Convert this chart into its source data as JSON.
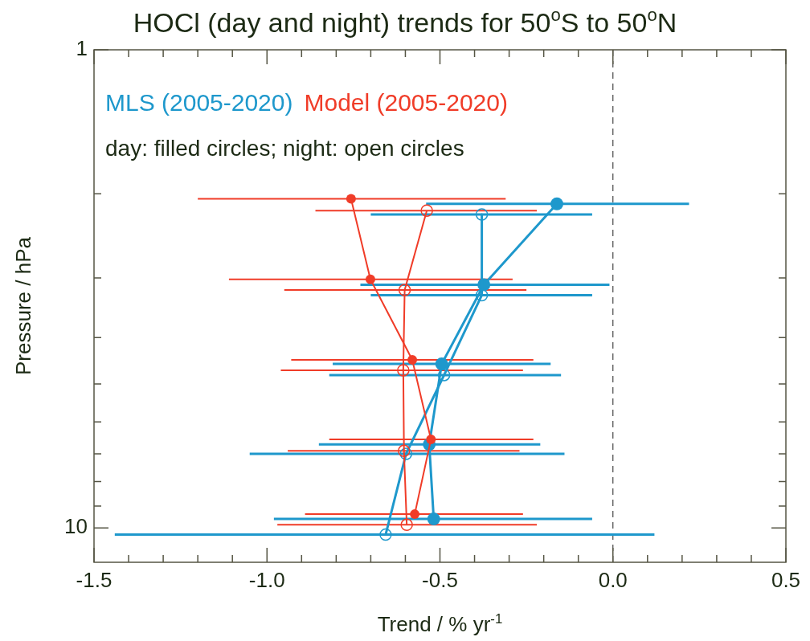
{
  "chart_data": {
    "type": "line",
    "title": "HOCl (day and night) trends for 50$^{o}$S to 50$^{o}$N",
    "xlabel": "Trend / % yr$^{-1}$",
    "ylabel": "Pressure / hPa",
    "annotations": [
      "day: filled circles; night: open circles"
    ],
    "xlim": [
      -1.5,
      0.5
    ],
    "xticks": [
      {
        "value": -1.5,
        "label": "-1.5"
      },
      {
        "value": -1.4,
        "label": null
      },
      {
        "value": -1.3,
        "label": null
      },
      {
        "value": -1.2,
        "label": null
      },
      {
        "value": -1.1,
        "label": null
      },
      {
        "value": -1.0,
        "label": "-1.0"
      },
      {
        "value": -0.9,
        "label": null
      },
      {
        "value": -0.8,
        "label": null
      },
      {
        "value": -0.7,
        "label": null
      },
      {
        "value": -0.6,
        "label": null
      },
      {
        "value": -0.5,
        "label": "-0.5"
      },
      {
        "value": -0.4,
        "label": null
      },
      {
        "value": -0.3,
        "label": null
      },
      {
        "value": -0.2,
        "label": null
      },
      {
        "value": -0.1,
        "label": null
      },
      {
        "value": 0,
        "label": "0.0"
      },
      {
        "value": 0.1,
        "label": null
      },
      {
        "value": 0.2,
        "label": null
      },
      {
        "value": 0.3,
        "label": null
      },
      {
        "value": 0.4,
        "label": null
      },
      {
        "value": 0.5,
        "label": "0.5"
      }
    ],
    "ylim": [
      11.8,
      1
    ],
    "yticks": [
      1,
      {
        "value": 2,
        "label": null
      },
      {
        "value": 3,
        "label": null
      },
      {
        "value": 4,
        "label": null
      },
      {
        "value": 5,
        "label": null
      },
      {
        "value": 6,
        "label": null
      },
      {
        "value": 7,
        "label": null
      },
      {
        "value": 8,
        "label": null
      },
      {
        "value": 9,
        "label": null
      },
      10
    ],
    "log": "y",
    "grid": false,
    "legend": "top left",
    "marker": "circle",
    "ref_lines": [
      {
        "axis": "x",
        "value": 0,
        "label": null,
        "color": "#444444",
        "line_style": "dashed"
      }
    ],
    "series": [
      {
        "name": "MLS (2005-2020)",
        "color": "#1e98cc",
        "x": [
          -0.162,
          -0.373,
          -0.495,
          -0.531,
          -0.518
        ],
        "values": [
          2.1,
          3.1,
          4.54,
          6.69,
          9.58
        ],
        "xerrors": [
          [
            -0.54,
            0.22
          ],
          [
            -0.73,
            -0.01
          ],
          [
            -0.81,
            -0.18
          ],
          [
            -0.85,
            -0.21
          ],
          [
            -0.98,
            -0.06
          ]
        ]
      },
      {
        "color": "#1e98cc",
        "marker": "open circle",
        "x": [
          -0.379,
          -0.379,
          -0.488,
          -0.598,
          -0.657
        ],
        "values": [
          2.21,
          3.26,
          4.79,
          7.0,
          10.33
        ],
        "xerrors": [
          [
            -0.7,
            -0.06
          ],
          [
            -0.7,
            -0.06
          ],
          [
            -0.82,
            -0.15
          ],
          [
            -1.05,
            -0.14
          ],
          [
            -1.44,
            0.12
          ]
        ]
      },
      {
        "name": "Model (2005-2020)",
        "color": "#f03c28",
        "x": [
          -0.757,
          -0.701,
          -0.58,
          -0.526,
          -0.573
        ],
        "values": [
          2.05,
          3.02,
          4.45,
          6.53,
          9.36
        ],
        "xerrors": [
          [
            -1.2,
            -0.31
          ],
          [
            -1.11,
            -0.29
          ],
          [
            -0.93,
            -0.23
          ],
          [
            -0.82,
            -0.23
          ],
          [
            -0.89,
            -0.26
          ]
        ]
      },
      {
        "color": "#f03c28",
        "marker": "open circle",
        "x": [
          -0.538,
          -0.602,
          -0.606,
          -0.604,
          -0.596
        ],
        "values": [
          2.17,
          3.18,
          4.68,
          6.9,
          9.85
        ],
        "xerrors": [
          [
            -0.86,
            -0.22
          ],
          [
            -0.95,
            -0.25
          ],
          [
            -0.96,
            -0.26
          ],
          [
            -0.94,
            -0.27
          ],
          [
            -0.97,
            -0.22
          ]
        ]
      }
    ]
  }
}
